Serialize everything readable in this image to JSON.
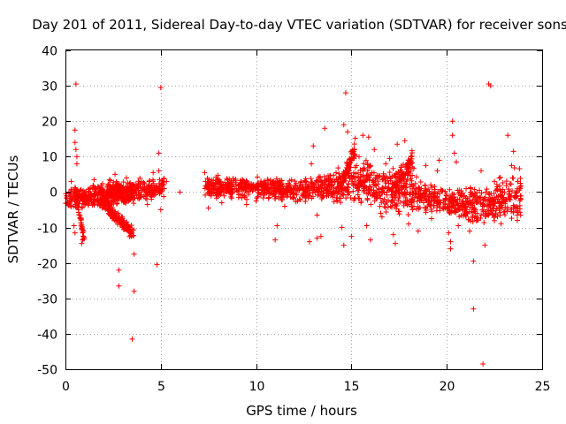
{
  "chart_data": {
    "type": "scatter",
    "title": "Day 201 of 2011, Sidereal Day-to-day VTEC variation (SDTVAR) for receiver sons",
    "xlabel": "GPS time / hours",
    "ylabel": "SDTVAR / TECUs",
    "xlim": [
      0,
      25
    ],
    "ylim": [
      -50,
      40
    ],
    "xticks": [
      "0",
      "5",
      "10",
      "15",
      "20",
      "25"
    ],
    "xtick_values": [
      0,
      5,
      10,
      15,
      20,
      25
    ],
    "yticks": [
      "40",
      "30",
      "20",
      "10",
      "0",
      "-10",
      "-20",
      "-30",
      "-40",
      "-50"
    ],
    "ytick_values": [
      40,
      30,
      20,
      10,
      0,
      -10,
      -20,
      -30,
      -40,
      -50
    ],
    "grid": true,
    "marker": "+",
    "color": "#ff0000",
    "series": [
      {
        "name": "SDTVAR",
        "bands": [
          {
            "x0": 0.0,
            "x1": 5.2,
            "y0": -2.0,
            "y1": 1.5,
            "spread": 3.5
          },
          {
            "x0": 7.3,
            "x1": 12.5,
            "y0": 1.5,
            "y1": 0.5,
            "spread": 3.5
          },
          {
            "x0": 12.5,
            "x1": 14.0,
            "y0": 0.5,
            "y1": 1.5,
            "spread": 4.0
          },
          {
            "x0": 14.0,
            "x1": 16.0,
            "y0": 1.5,
            "y1": 3.5,
            "spread": 6.0
          },
          {
            "x0": 16.0,
            "x1": 18.5,
            "y0": 1.0,
            "y1": 0.0,
            "spread": 7.0
          },
          {
            "x0": 18.5,
            "x1": 21.0,
            "y0": -1.0,
            "y1": -3.5,
            "spread": 4.5
          },
          {
            "x0": 21.0,
            "x1": 22.6,
            "y0": -3.5,
            "y1": -4.0,
            "spread": 6.0
          },
          {
            "x0": 22.6,
            "x1": 23.9,
            "y0": -3.0,
            "y1": 0.0,
            "spread": 8.5
          },
          {
            "x0": 0.5,
            "x1": 1.0,
            "y0": 0.0,
            "y1": -14.0,
            "spread": 2.0
          },
          {
            "x0": 1.8,
            "x1": 3.6,
            "y0": -2.0,
            "y1": -12.0,
            "spread": 2.0
          },
          {
            "x0": 2.2,
            "x1": 3.6,
            "y0": 1.0,
            "y1": -1.5,
            "spread": 3.0
          },
          {
            "x0": 14.4,
            "x1": 15.2,
            "y0": 1.0,
            "y1": 12.0,
            "spread": 3.5
          },
          {
            "x0": 17.3,
            "x1": 18.2,
            "y0": 2.0,
            "y1": 9.0,
            "spread": 3.5
          }
        ],
        "points": [
          [
            0.55,
            30.5
          ],
          [
            0.5,
            17.5
          ],
          [
            0.5,
            14.0
          ],
          [
            0.55,
            12.0
          ],
          [
            0.6,
            10.0
          ],
          [
            0.6,
            8.0
          ],
          [
            0.45,
            -9.5
          ],
          [
            0.5,
            -11.5
          ],
          [
            0.9,
            -13.5
          ],
          [
            0.85,
            -14.5
          ],
          [
            2.8,
            -22.0
          ],
          [
            2.8,
            -26.5
          ],
          [
            3.5,
            -41.5
          ],
          [
            3.6,
            -28.0
          ],
          [
            3.6,
            -17.5
          ],
          [
            4.8,
            -20.5
          ],
          [
            5.0,
            29.5
          ],
          [
            4.9,
            11.0
          ],
          [
            4.9,
            6.0
          ],
          [
            5.0,
            -5.0
          ],
          [
            7.3,
            5.5
          ],
          [
            7.5,
            -4.5
          ],
          [
            9.5,
            -3.5
          ],
          [
            11.0,
            -13.5
          ],
          [
            11.1,
            -9.5
          ],
          [
            11.5,
            -4.0
          ],
          [
            13.0,
            13.0
          ],
          [
            12.9,
            8.0
          ],
          [
            12.8,
            -14.0
          ],
          [
            13.2,
            -13.0
          ],
          [
            13.4,
            -12.5
          ],
          [
            13.6,
            18.0
          ],
          [
            13.2,
            -6.5
          ],
          [
            14.7,
            28.0
          ],
          [
            14.6,
            -15.0
          ],
          [
            14.5,
            -10.0
          ],
          [
            14.6,
            19.0
          ],
          [
            14.8,
            17.0
          ],
          [
            15.0,
            -12.5
          ],
          [
            15.2,
            7.0
          ],
          [
            15.5,
            -3.0
          ],
          [
            15.6,
            16.0
          ],
          [
            15.9,
            15.5
          ],
          [
            15.8,
            -9.5
          ],
          [
            16.0,
            -13.5
          ],
          [
            16.2,
            12.0
          ],
          [
            16.6,
            -7.0
          ],
          [
            17.0,
            9.5
          ],
          [
            17.2,
            -12.0
          ],
          [
            17.3,
            -14.5
          ],
          [
            17.4,
            13.5
          ],
          [
            17.8,
            14.5
          ],
          [
            18.0,
            -9.0
          ],
          [
            18.5,
            -11.0
          ],
          [
            18.9,
            7.5
          ],
          [
            19.5,
            6.0
          ],
          [
            19.6,
            9.0
          ],
          [
            20.1,
            -11.5
          ],
          [
            20.2,
            -14.0
          ],
          [
            20.2,
            -16.0
          ],
          [
            20.3,
            20.0
          ],
          [
            20.3,
            16.0
          ],
          [
            20.4,
            11.0
          ],
          [
            20.5,
            8.5
          ],
          [
            20.6,
            -9.5
          ],
          [
            21.2,
            -11.0
          ],
          [
            21.4,
            -19.5
          ],
          [
            21.4,
            -33.0
          ],
          [
            21.6,
            -8.0
          ],
          [
            21.8,
            6.0
          ],
          [
            21.9,
            -48.5
          ],
          [
            22.0,
            -15.0
          ],
          [
            22.2,
            30.5
          ],
          [
            22.3,
            30.0
          ],
          [
            22.5,
            3.0
          ],
          [
            23.2,
            16.0
          ],
          [
            23.4,
            7.5
          ],
          [
            23.5,
            11.5
          ],
          [
            23.6,
            -4.5
          ],
          [
            23.7,
            -8.0
          ],
          [
            22.8,
            -6.5
          ],
          [
            18.2,
            -5.0
          ],
          [
            19.2,
            -7.5
          ],
          [
            10.0,
            -2.5
          ],
          [
            8.2,
            -3.0
          ],
          [
            6.0,
            0.0
          ],
          [
            5.3,
            3.0
          ],
          [
            0.3,
            3.0
          ],
          [
            1.5,
            3.5
          ],
          [
            2.6,
            5.0
          ],
          [
            3.2,
            4.0
          ],
          [
            4.6,
            5.5
          ],
          [
            4.3,
            -3.5
          ],
          [
            3.0,
            -10.0
          ],
          [
            16.8,
            8.0
          ],
          [
            15.4,
            10.0
          ]
        ]
      }
    ]
  }
}
